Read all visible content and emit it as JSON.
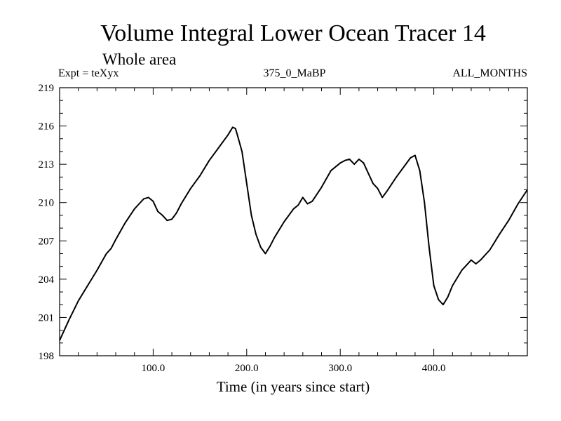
{
  "chart_data": {
    "type": "line",
    "title": "Volume Integral Lower Ocean Tracer 14",
    "subtitle": "Whole area",
    "experiment_label": "Expt = teXyx",
    "period_label": "375_0_MaBP",
    "months_label": "ALL_MONTHS",
    "xlabel": "Time (in years since start)",
    "ylabel": "",
    "xlim": [
      0,
      500
    ],
    "ylim": [
      198,
      219
    ],
    "xticks": [
      100,
      200,
      300,
      400
    ],
    "xtick_labels": [
      "100.0",
      "200.0",
      "300.0",
      "400.0"
    ],
    "yticks": [
      198,
      201,
      204,
      207,
      210,
      213,
      216,
      219
    ],
    "ytick_labels": [
      "198",
      "201",
      "204",
      "207",
      "210",
      "213",
      "216",
      "219"
    ],
    "grid": false,
    "line_color": "#000000",
    "series": [
      {
        "x": [
          0,
          10,
          20,
          30,
          40,
          50,
          55,
          60,
          70,
          80,
          85,
          90,
          95,
          100,
          105,
          110,
          115,
          120,
          125,
          130,
          140,
          150,
          160,
          170,
          180,
          185,
          188,
          190,
          195,
          200,
          205,
          210,
          215,
          220,
          225,
          230,
          240,
          250,
          255,
          260,
          265,
          270,
          280,
          290,
          300,
          305,
          310,
          315,
          320,
          325,
          330,
          335,
          340,
          345,
          350,
          360,
          370,
          375,
          380,
          385,
          390,
          395,
          400,
          405,
          410,
          415,
          420,
          430,
          440,
          445,
          450,
          460,
          470,
          480,
          490,
          500
        ],
        "y": [
          199.2,
          200.8,
          202.3,
          203.5,
          204.7,
          206.0,
          206.4,
          207.1,
          208.4,
          209.5,
          209.9,
          210.3,
          210.4,
          210.1,
          209.3,
          209.0,
          208.6,
          208.7,
          209.2,
          209.9,
          211.1,
          212.1,
          213.3,
          214.3,
          215.3,
          215.9,
          215.8,
          215.3,
          214.0,
          211.5,
          209.0,
          207.5,
          206.5,
          206.0,
          206.6,
          207.3,
          208.5,
          209.5,
          209.8,
          210.4,
          209.9,
          210.1,
          211.2,
          212.5,
          213.1,
          213.3,
          213.4,
          213.0,
          213.4,
          213.1,
          212.3,
          211.5,
          211.1,
          210.4,
          210.9,
          212.0,
          213.0,
          213.5,
          213.7,
          212.5,
          210.0,
          206.5,
          203.5,
          202.4,
          202.0,
          202.6,
          203.5,
          204.7,
          205.5,
          205.2,
          205.5,
          206.3,
          207.5,
          208.6,
          209.9,
          211.0
        ]
      }
    ]
  }
}
